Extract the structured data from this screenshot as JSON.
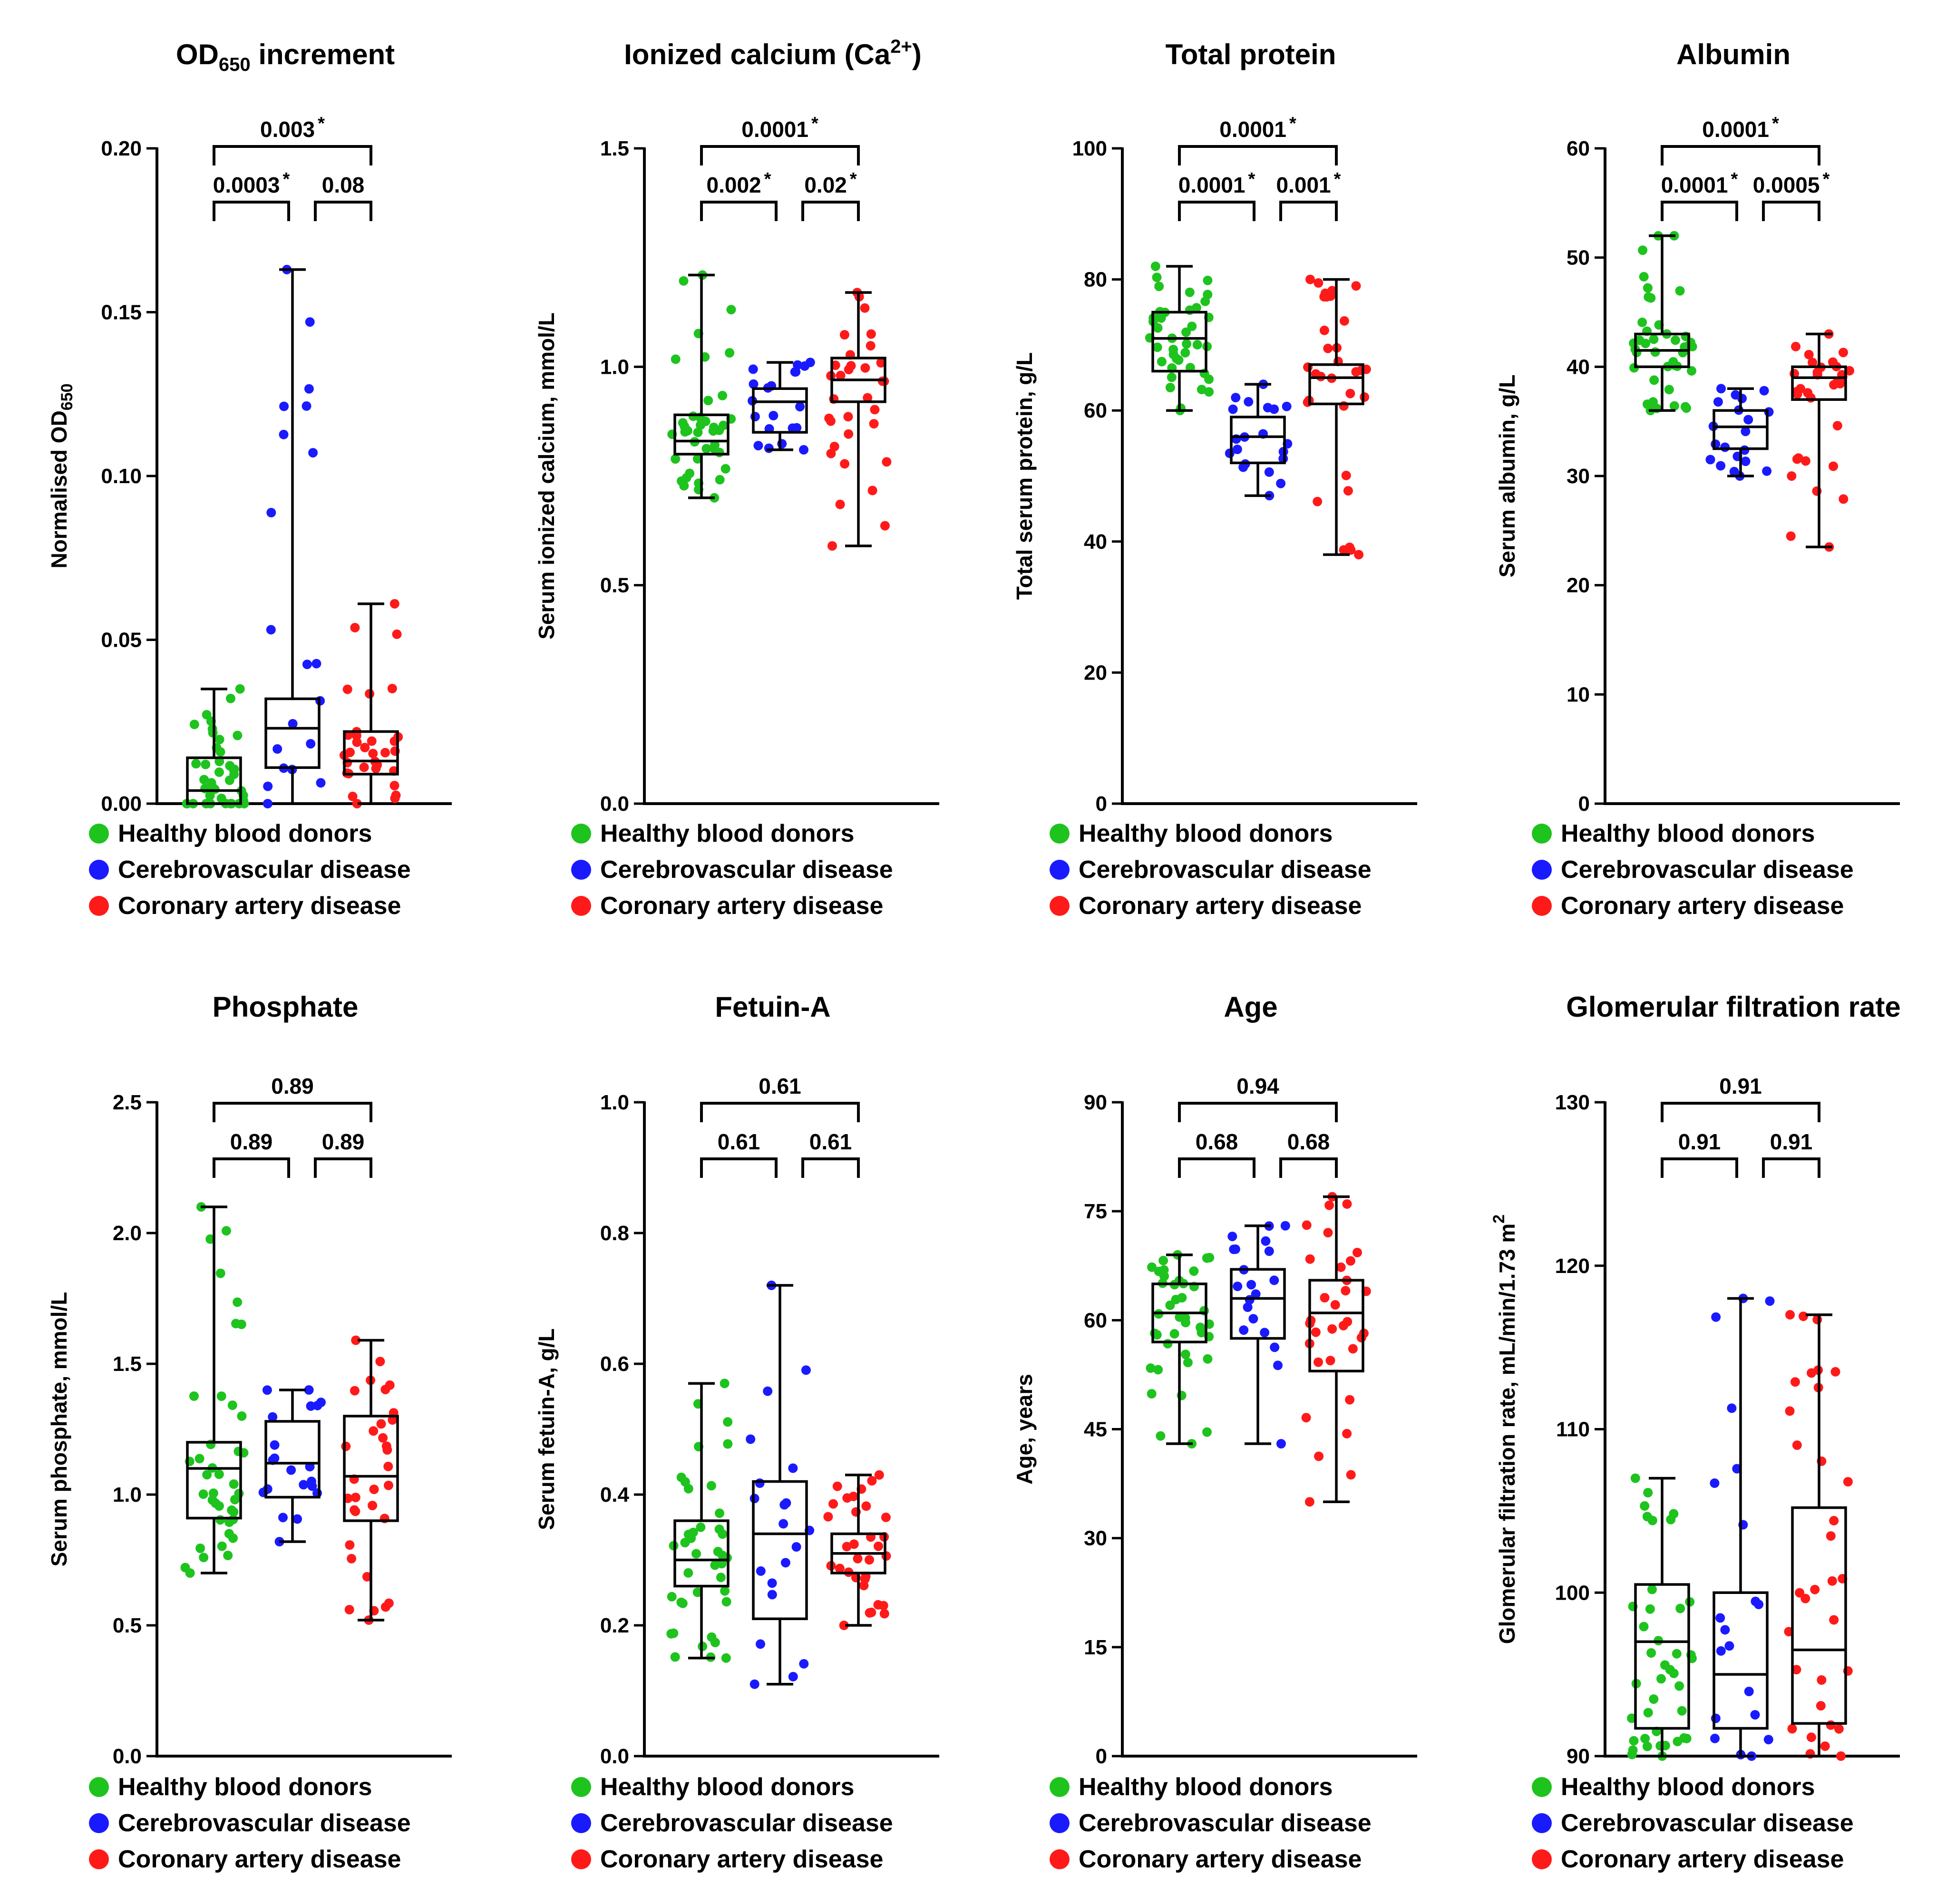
{
  "figure": {
    "colors": {
      "healthy": "#1ec31e",
      "cerebro": "#1a1aff",
      "coronary": "#ff1a1a",
      "ink": "#000000"
    },
    "legend": [
      {
        "label": "Healthy blood donors",
        "color": "#1ec31e"
      },
      {
        "label": "Cerebrovascular disease",
        "color": "#1a1aff"
      },
      {
        "label": "Coronary artery disease",
        "color": "#ff1a1a"
      }
    ]
  },
  "chart_data": [
    {
      "type": "box",
      "title": "OD",
      "title_sub": "650",
      "title_rest": " increment",
      "ylabel": "Normalised OD",
      "ylabel_sub": "650",
      "ylim": [
        0,
        0.2
      ],
      "yticks": [
        0,
        0.05,
        0.1,
        0.15,
        0.2
      ],
      "ytick_labels": [
        "0.00",
        "0.05",
        "0.10",
        "0.15",
        "0.20"
      ],
      "comparisons": [
        {
          "pair": [
            0,
            1
          ],
          "label": "0.0003",
          "significant": true
        },
        {
          "pair": [
            1,
            2
          ],
          "label": "0.08",
          "significant": false
        },
        {
          "pair": [
            0,
            2
          ],
          "label": "0.003",
          "significant": true
        }
      ],
      "series": [
        {
          "name": "Healthy blood donors",
          "min": 0.0,
          "q1": 0.0,
          "median": 0.004,
          "q3": 0.014,
          "max": 0.035
        },
        {
          "name": "Cerebrovascular disease",
          "min": 0.0,
          "q1": 0.011,
          "median": 0.023,
          "q3": 0.032,
          "max": 0.163
        },
        {
          "name": "Coronary artery disease",
          "min": 0.0,
          "q1": 0.009,
          "median": 0.013,
          "q3": 0.022,
          "max": 0.061
        }
      ]
    },
    {
      "type": "box",
      "title": "Ionized calcium (Ca",
      "title_sup": "2+",
      "title_rest": ")",
      "ylabel": "Serum ionized calcium, mmol/L",
      "ylim": [
        0,
        1.5
      ],
      "yticks": [
        0,
        0.5,
        1.0,
        1.5
      ],
      "ytick_labels": [
        "0.0",
        "0.5",
        "1.0",
        "1.5"
      ],
      "comparisons": [
        {
          "pair": [
            0,
            1
          ],
          "label": "0.002",
          "significant": true
        },
        {
          "pair": [
            1,
            2
          ],
          "label": "0.02",
          "significant": true
        },
        {
          "pair": [
            0,
            2
          ],
          "label": "0.0001",
          "significant": true
        }
      ],
      "series": [
        {
          "name": "Healthy blood donors",
          "min": 0.7,
          "q1": 0.8,
          "median": 0.83,
          "q3": 0.89,
          "max": 1.21
        },
        {
          "name": "Cerebrovascular disease",
          "min": 0.81,
          "q1": 0.85,
          "median": 0.92,
          "q3": 0.95,
          "max": 1.01
        },
        {
          "name": "Coronary artery disease",
          "min": 0.59,
          "q1": 0.92,
          "median": 0.97,
          "q3": 1.02,
          "max": 1.17
        }
      ]
    },
    {
      "type": "box",
      "title": "Total protein",
      "ylabel": "Total serum protein, g/L",
      "ylim": [
        0,
        100
      ],
      "yticks": [
        0,
        20,
        40,
        60,
        80,
        100
      ],
      "ytick_labels": [
        "0",
        "20",
        "40",
        "60",
        "80",
        "100"
      ],
      "comparisons": [
        {
          "pair": [
            0,
            1
          ],
          "label": "0.0001",
          "significant": true
        },
        {
          "pair": [
            1,
            2
          ],
          "label": "0.001",
          "significant": true
        },
        {
          "pair": [
            0,
            2
          ],
          "label": "0.0001",
          "significant": true
        }
      ],
      "series": [
        {
          "name": "Healthy blood donors",
          "min": 60,
          "q1": 66,
          "median": 71,
          "q3": 75,
          "max": 82
        },
        {
          "name": "Cerebrovascular disease",
          "min": 47,
          "q1": 52,
          "median": 56,
          "q3": 59,
          "max": 64
        },
        {
          "name": "Coronary artery disease",
          "min": 38,
          "q1": 61,
          "median": 65,
          "q3": 67,
          "max": 80
        }
      ]
    },
    {
      "type": "box",
      "title": "Albumin",
      "ylabel": "Serum albumin, g/L",
      "ylim": [
        0,
        60
      ],
      "yticks": [
        0,
        10,
        20,
        30,
        40,
        50,
        60
      ],
      "ytick_labels": [
        "0",
        "10",
        "20",
        "30",
        "40",
        "50",
        "60"
      ],
      "comparisons": [
        {
          "pair": [
            0,
            1
          ],
          "label": "0.0001",
          "significant": true
        },
        {
          "pair": [
            1,
            2
          ],
          "label": "0.0005",
          "significant": true
        },
        {
          "pair": [
            0,
            2
          ],
          "label": "0.0001",
          "significant": true
        }
      ],
      "series": [
        {
          "name": "Healthy blood donors",
          "min": 36,
          "q1": 40,
          "median": 41.5,
          "q3": 43,
          "max": 52
        },
        {
          "name": "Cerebrovascular disease",
          "min": 30,
          "q1": 32.5,
          "median": 34.5,
          "q3": 36,
          "max": 38
        },
        {
          "name": "Coronary artery disease",
          "min": 23.5,
          "q1": 37,
          "median": 39,
          "q3": 40,
          "max": 43
        }
      ]
    },
    {
      "type": "box",
      "title": "Phosphate",
      "ylabel": "Serum phosphate, mmol/L",
      "ylim": [
        0,
        2.5
      ],
      "yticks": [
        0,
        0.5,
        1.0,
        1.5,
        2.0,
        2.5
      ],
      "ytick_labels": [
        "0.0",
        "0.5",
        "1.0",
        "1.5",
        "2.0",
        "2.5"
      ],
      "comparisons": [
        {
          "pair": [
            0,
            1
          ],
          "label": "0.89",
          "significant": false
        },
        {
          "pair": [
            1,
            2
          ],
          "label": "0.89",
          "significant": false
        },
        {
          "pair": [
            0,
            2
          ],
          "label": "0.89",
          "significant": false
        }
      ],
      "series": [
        {
          "name": "Healthy blood donors",
          "min": 0.7,
          "q1": 0.91,
          "median": 1.1,
          "q3": 1.2,
          "max": 2.1
        },
        {
          "name": "Cerebrovascular disease",
          "min": 0.82,
          "q1": 0.99,
          "median": 1.12,
          "q3": 1.28,
          "max": 1.4
        },
        {
          "name": "Coronary artery disease",
          "min": 0.52,
          "q1": 0.9,
          "median": 1.07,
          "q3": 1.3,
          "max": 1.59
        }
      ]
    },
    {
      "type": "box",
      "title": "Fetuin-A",
      "ylabel": "Serum fetuin-A, g/L",
      "ylim": [
        0,
        1.0
      ],
      "yticks": [
        0,
        0.2,
        0.4,
        0.6,
        0.8,
        1.0
      ],
      "ytick_labels": [
        "0.0",
        "0.2",
        "0.4",
        "0.6",
        "0.8",
        "1.0"
      ],
      "comparisons": [
        {
          "pair": [
            0,
            1
          ],
          "label": "0.61",
          "significant": false
        },
        {
          "pair": [
            1,
            2
          ],
          "label": "0.61",
          "significant": false
        },
        {
          "pair": [
            0,
            2
          ],
          "label": "0.61",
          "significant": false
        }
      ],
      "series": [
        {
          "name": "Healthy blood donors",
          "min": 0.15,
          "q1": 0.26,
          "median": 0.3,
          "q3": 0.36,
          "max": 0.57
        },
        {
          "name": "Cerebrovascular disease",
          "min": 0.11,
          "q1": 0.21,
          "median": 0.34,
          "q3": 0.42,
          "max": 0.72
        },
        {
          "name": "Coronary artery disease",
          "min": 0.2,
          "q1": 0.28,
          "median": 0.31,
          "q3": 0.34,
          "max": 0.43
        }
      ]
    },
    {
      "type": "box",
      "title": "Age",
      "ylabel": "Age, years",
      "ylim": [
        0,
        90
      ],
      "yticks": [
        0,
        15,
        30,
        45,
        60,
        75,
        90
      ],
      "ytick_labels": [
        "0",
        "15",
        "30",
        "45",
        "60",
        "75",
        "90"
      ],
      "comparisons": [
        {
          "pair": [
            0,
            1
          ],
          "label": "0.68",
          "significant": false
        },
        {
          "pair": [
            1,
            2
          ],
          "label": "0.68",
          "significant": false
        },
        {
          "pair": [
            0,
            2
          ],
          "label": "0.94",
          "significant": false
        }
      ],
      "series": [
        {
          "name": "Healthy blood donors",
          "min": 43,
          "q1": 57,
          "median": 61,
          "q3": 65,
          "max": 69
        },
        {
          "name": "Cerebrovascular disease",
          "min": 43,
          "q1": 57.5,
          "median": 63,
          "q3": 67,
          "max": 73
        },
        {
          "name": "Coronary artery disease",
          "min": 35,
          "q1": 53,
          "median": 61,
          "q3": 65.5,
          "max": 77
        }
      ]
    },
    {
      "type": "box",
      "title": "Glomerular filtration rate",
      "ylabel": "Glomerular filtration rate, mL/min/1.73 m",
      "ylabel_sup": "2",
      "ylim": [
        90,
        130
      ],
      "yticks": [
        90,
        100,
        110,
        120,
        130
      ],
      "ytick_labels": [
        "90",
        "100",
        "110",
        "120",
        "130"
      ],
      "comparisons": [
        {
          "pair": [
            0,
            1
          ],
          "label": "0.91",
          "significant": false
        },
        {
          "pair": [
            1,
            2
          ],
          "label": "0.91",
          "significant": false
        },
        {
          "pair": [
            0,
            2
          ],
          "label": "0.91",
          "significant": false
        }
      ],
      "series": [
        {
          "name": "Healthy blood donors",
          "min": 90,
          "q1": 91.7,
          "median": 97,
          "q3": 100.5,
          "max": 107
        },
        {
          "name": "Cerebrovascular disease",
          "min": 90,
          "q1": 91.7,
          "median": 95,
          "q3": 100,
          "max": 118
        },
        {
          "name": "Coronary artery disease",
          "min": 90,
          "q1": 92,
          "median": 96.5,
          "q3": 105.2,
          "max": 117
        }
      ]
    }
  ]
}
